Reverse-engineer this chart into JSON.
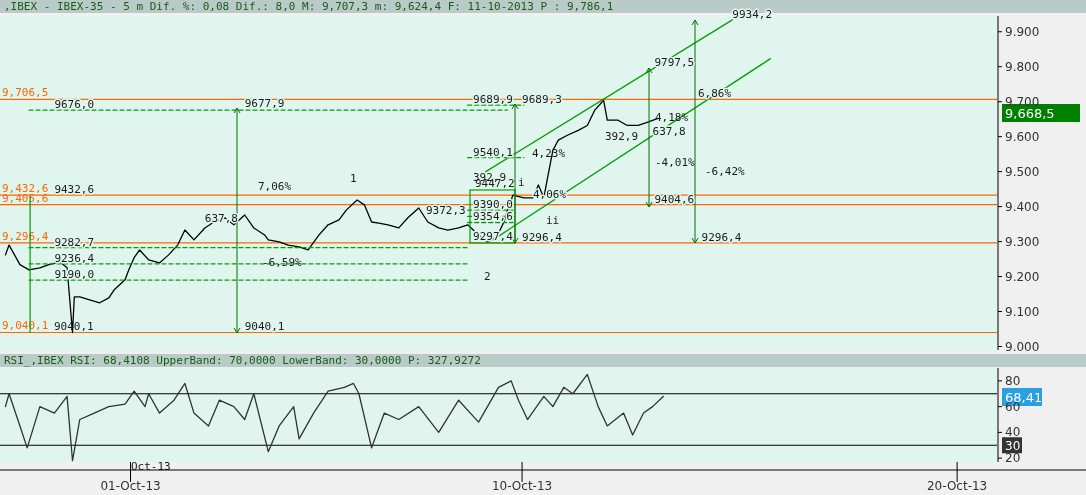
{
  "chart_data": [
    {
      "type": "line",
      "title": ",IBEX - IBEX-35 -  5 m Dif. %: 0,08 Dif.: 8,0 M: 9,707,3 m: 9,624,4 F: 11-10-2013 P : 9,786,1",
      "xlim": [
        "2013-09-28T00:00",
        "2013-10-20T22:00"
      ],
      "ylim": [
        8990,
        9945
      ],
      "yticks": [
        {
          "value": 9000,
          "label": "9.000"
        },
        {
          "value": 9100,
          "label": "9.100"
        },
        {
          "value": 9200,
          "label": "9.200"
        },
        {
          "value": 9300,
          "label": "9.300"
        },
        {
          "value": 9400,
          "label": "9.400"
        },
        {
          "value": 9500,
          "label": "9.500"
        },
        {
          "value": 9600,
          "label": "9.600"
        },
        {
          "value": 9700,
          "label": "9.700"
        },
        {
          "value": 9800,
          "label": "9.800"
        },
        {
          "value": 9900,
          "label": "9.900"
        }
      ],
      "tick_labels": "y",
      "series": [
        {
          "color": "#000000",
          "x": [
            "2013-09-28T03:00",
            "2013-09-28T05:00",
            "2013-09-28T11:00",
            "2013-09-28T16:00",
            "2013-09-28T22:00",
            "2013-09-29T03:00",
            "2013-09-29T09:00",
            "2013-09-29T13:00",
            "2013-09-29T16:00",
            "2013-09-29T17:00",
            "2013-09-29T20:00",
            "2013-09-30T01:00",
            "2013-09-30T07:00",
            "2013-09-30T12:00",
            "2013-09-30T15:00",
            "2013-09-30T21:00",
            "2013-09-30T23:00",
            "2013-10-01T02:00",
            "2013-10-01T05:00",
            "2013-10-01T10:00",
            "2013-10-01T16:00",
            "2013-10-01T21:00",
            "2013-10-02T02:00",
            "2013-10-02T06:00",
            "2013-10-02T11:00",
            "2013-10-02T17:00",
            "2013-10-02T22:00",
            "2013-10-03T04:00",
            "2013-10-03T09:00",
            "2013-10-03T15:00",
            "2013-10-03T20:00",
            "2013-10-04T02:00",
            "2013-10-04T04:00",
            "2013-10-04T10:00",
            "2013-10-04T15:00",
            "2013-10-04T21:00",
            "2013-10-05T02:00",
            "2013-10-05T08:00",
            "2013-10-05T13:00",
            "2013-10-05T19:00",
            "2013-10-05T23:00",
            "2013-10-06T05:00",
            "2013-10-06T09:00",
            "2013-10-06T13:00",
            "2013-10-06T17:00",
            "2013-10-06T22:00",
            "2013-10-07T04:00",
            "2013-10-07T09:00",
            "2013-10-07T15:00",
            "2013-10-07T20:00",
            "2013-10-08T02:00",
            "2013-10-08T07:00",
            "2013-10-08T13:00",
            "2013-10-08T18:00",
            "2013-10-09T00:00",
            "2013-10-09T05:00",
            "2013-10-09T10:00",
            "2013-10-09T14:00",
            "2013-10-09T16:00",
            "2013-10-09T19:00",
            "2013-10-10T01:00",
            "2013-10-10T06:00",
            "2013-10-10T09:00",
            "2013-10-10T12:00",
            "2013-10-10T14:00",
            "2013-10-10T17:00",
            "2013-10-10T20:00",
            "2013-10-11T01:00",
            "2013-10-11T07:00",
            "2013-10-11T12:00",
            "2013-10-11T16:00",
            "2013-10-11T21:00",
            "2013-10-11T23:00",
            "2013-10-12T05:00",
            "2013-10-12T10:00",
            "2013-10-12T16:00",
            "2013-10-12T21:00",
            "2013-10-13T03:00"
          ],
          "values": [
            9262,
            9290,
            9234,
            9219,
            9225,
            9234,
            9242,
            9225,
            9040,
            9142,
            9142,
            9134,
            9125,
            9139,
            9162,
            9191,
            9219,
            9254,
            9276,
            9248,
            9239,
            9262,
            9290,
            9333,
            9305,
            9339,
            9356,
            9368,
            9348,
            9376,
            9339,
            9319,
            9305,
            9299,
            9290,
            9285,
            9276,
            9319,
            9348,
            9362,
            9390,
            9419,
            9405,
            9356,
            9353,
            9348,
            9339,
            9368,
            9396,
            9356,
            9339,
            9333,
            9339,
            9348,
            9319,
            9299,
            9313,
            9356,
            9390,
            9433,
            9425,
            9425,
            9462,
            9425,
            9481,
            9561,
            9590,
            9604,
            9618,
            9632,
            9675,
            9704,
            9647,
            9647,
            9632,
            9632,
            9641,
            9652
          ]
        },
        {
          "color": "#00a000",
          "x": [
            "2013-10-09T04:00",
            "2013-10-14T20:00"
          ],
          "values": [
            9500,
            9934
          ]
        },
        {
          "color": "#00a000",
          "x": [
            "2013-10-09T08:00",
            "2013-10-15T17:00"
          ],
          "values": [
            9305,
            9823
          ]
        },
        {
          "color": "#00a000",
          "line_style": "dashed",
          "x": [
            "2013-09-28T16:00",
            "2013-10-09T16:00"
          ],
          "values": [
            9676.0,
            9676.0
          ]
        },
        {
          "color": "#00a000",
          "line_style": "dashed",
          "x": [
            "2013-09-28T16:00",
            "2013-10-08T18:00"
          ],
          "values": [
            9282.7,
            9282.7
          ]
        },
        {
          "color": "#00a000",
          "line_style": "dashed",
          "x": [
            "2013-09-28T16:00",
            "2013-10-08T18:00"
          ],
          "values": [
            9236.4,
            9236.4
          ]
        },
        {
          "color": "#00a000",
          "line_style": "dashed",
          "x": [
            "2013-09-28T16:00",
            "2013-10-08T18:00"
          ],
          "values": [
            9190.0,
            9190.0
          ]
        },
        {
          "color": "#00a000",
          "line_style": "dashed",
          "x": [
            "2013-10-08T18:00",
            "2013-10-10T01:00"
          ],
          "values": [
            9689.9,
            9689.9
          ]
        },
        {
          "color": "#00a000",
          "line_style": "dashed",
          "x": [
            "2013-10-08T18:00",
            "2013-10-10T01:00"
          ],
          "values": [
            9540.1,
            9540.1
          ]
        },
        {
          "color": "#00a000",
          "line_style": "dashed",
          "x": [
            "2013-10-08T18:00",
            "2013-10-09T19:00"
          ],
          "values": [
            9390.0,
            9390.0
          ]
        },
        {
          "color": "#00a000",
          "line_style": "dashed",
          "x": [
            "2013-10-08T18:00",
            "2013-10-09T19:00"
          ],
          "values": [
            9372.3,
            9372.3
          ]
        },
        {
          "color": "#00a000",
          "line_style": "dashed",
          "x": [
            "2013-10-08T18:00",
            "2013-10-09T19:00"
          ],
          "values": [
            9354.6,
            9354.6
          ]
        }
      ],
      "ref_lines": [
        {
          "axis": "y",
          "value": 9706.5,
          "label": "9,706,5",
          "color": "#ff6600"
        },
        {
          "axis": "y",
          "value": 9432.6,
          "label": "9,432,6",
          "color": "#ff6600"
        },
        {
          "axis": "y",
          "value": 9405.6,
          "label": "9,405,6",
          "color": "#ff6600"
        },
        {
          "axis": "y",
          "value": 9296.4,
          "label": "9,296,4",
          "color": "#ff6600"
        },
        {
          "axis": "y",
          "value": 9040.1,
          "label": "9,040,1",
          "color": "#ff6600"
        }
      ],
      "annotations": [
        {
          "text": "9676,0",
          "x": "2013-09-29T06:00",
          "y": 9676.0
        },
        {
          "text": "9677,9",
          "x": "2013-10-03T15:00",
          "y": 9677.9
        },
        {
          "text": "9040,1",
          "x": "2013-10-03T15:00",
          "y": 9040.1
        },
        "7,06%",
        "-6,59%",
        {
          "text": "9432,6",
          "x": "2013-09-29T06:00",
          "y": 9432.6
        },
        {
          "text": "9282,7",
          "x": "2013-09-29T06:00",
          "y": 9282.7
        },
        {
          "text": "9236,4",
          "x": "2013-09-29T06:00",
          "y": 9236.4
        },
        {
          "text": "9190,0",
          "x": "2013-09-29T06:00",
          "y": 9190.0
        },
        "9040,1",
        {
          "text": "637,8",
          "x": "2013-10-02T17:00",
          "y": 9350
        },
        "1",
        "2",
        {
          "text": "9689,9",
          "x": "2013-10-08T21:00",
          "y": 9689.9
        },
        {
          "text": "9689,3",
          "x": "2013-10-10T00:00",
          "y": 9689.3
        },
        {
          "text": "9540,1",
          "x": "2013-10-08T21:00",
          "y": 9540.1
        },
        "4,23%",
        "392,9",
        "9447,2",
        "i",
        {
          "text": "9390,0",
          "x": "2013-10-08T21:00",
          "y": 9390.0
        },
        {
          "text": "9372,3",
          "x": "2013-10-07T19:00",
          "y": 9372.3
        },
        {
          "text": "9354,6",
          "x": "2013-10-08T21:00",
          "y": 9354.6
        },
        {
          "text": "9297,4",
          "x": "2013-10-08T21:00",
          "y": 9297.4
        },
        {
          "text": "4,06%",
          "x": "2013-10-10T06:00",
          "y": 9418
        },
        "ii",
        {
          "text": "9296,4",
          "x": "2013-10-10T00:00",
          "y": 9296.4
        },
        {
          "text": "9797,5",
          "x": "2013-10-13T01:00",
          "y": 9797.5
        },
        {
          "text": "9934,2",
          "x": "2013-10-14T20:00",
          "y": 9934
        },
        {
          "text": "6,86%",
          "x": "2013-10-14T01:00",
          "y": 9708
        },
        "4,18%",
        "392,9",
        {
          "text": "637,8",
          "x": "2013-10-13T00:00",
          "y": 9600
        },
        "-4,01%",
        "-6,42%",
        {
          "text": "9404,6",
          "x": "2013-10-13T01:00",
          "y": 9404.6
        },
        {
          "text": "9296,4",
          "x": "2013-10-14T03:00",
          "y": 9296.4
        },
        "9,668,5"
      ]
    },
    {
      "type": "line",
      "title": "RSI_,IBEX RSI: 68,4108 UpperBand: 70,0000 LowerBand: 30,0000 P: 327,9272",
      "xlim": [
        "2013-09-28T00:00",
        "2013-10-20T22:00"
      ],
      "ylim": [
        17,
        90
      ],
      "xticks": [
        {
          "value": "2013-10-01",
          "label": "01-Oct-13"
        },
        {
          "value": "2013-10-10",
          "label": "10-Oct-13"
        },
        {
          "value": "2013-10-20",
          "label": "20-Oct-13"
        }
      ],
      "yticks": [
        20,
        40,
        60,
        80
      ],
      "series": [
        {
          "color": "#333333",
          "x": [
            "2013-09-28T03:00",
            "2013-09-28T05:00",
            "2013-09-28T11:00",
            "2013-09-28T15:00",
            "2013-09-28T22:00",
            "2013-09-29T06:00",
            "2013-09-29T13:00",
            "2013-09-29T16:00",
            "2013-09-29T20:00",
            "2013-09-30T04:00",
            "2013-09-30T12:00",
            "2013-09-30T21:00",
            "2013-10-01T02:00",
            "2013-10-01T08:00",
            "2013-10-01T10:00",
            "2013-10-01T16:00",
            "2013-10-02T00:00",
            "2013-10-02T06:00",
            "2013-10-02T11:00",
            "2013-10-02T19:00",
            "2013-10-03T01:00",
            "2013-10-03T09:00",
            "2013-10-03T15:00",
            "2013-10-03T20:00",
            "2013-10-04T04:00",
            "2013-10-04T10:00",
            "2013-10-04T18:00",
            "2013-10-04T21:00",
            "2013-10-05T05:00",
            "2013-10-05T13:00",
            "2013-10-05T22:00",
            "2013-10-06T03:00",
            "2013-10-06T06:00",
            "2013-10-06T13:00",
            "2013-10-06T20:00",
            "2013-10-07T04:00",
            "2013-10-07T15:00",
            "2013-10-08T02:00",
            "2013-10-08T13:00",
            "2013-10-09T00:00",
            "2013-10-09T11:00",
            "2013-10-09T18:00",
            "2013-10-09T22:00",
            "2013-10-10T03:00",
            "2013-10-10T12:00",
            "2013-10-10T17:00",
            "2013-10-10T23:00",
            "2013-10-11T04:00",
            "2013-10-11T12:00",
            "2013-10-11T18:00",
            "2013-10-11T23:00",
            "2013-10-12T08:00",
            "2013-10-12T13:00",
            "2013-10-12T19:00",
            "2013-10-13T00:00",
            "2013-10-13T06:00"
          ],
          "values": [
            60,
            70,
            45,
            28,
            60,
            55,
            68,
            18,
            50,
            55,
            60,
            62,
            72,
            60,
            70,
            55,
            65,
            78,
            55,
            45,
            65,
            60,
            50,
            70,
            25,
            45,
            60,
            35,
            55,
            72,
            75,
            78,
            70,
            28,
            55,
            50,
            60,
            40,
            65,
            48,
            75,
            80,
            65,
            50,
            68,
            60,
            75,
            70,
            85,
            60,
            45,
            55,
            38,
            55,
            60,
            68
          ]
        }
      ],
      "ref_lines": [
        {
          "axis": "y",
          "value": 70,
          "color": "#000000"
        },
        {
          "axis": "y",
          "value": 30,
          "label": "30",
          "color": "#000000"
        }
      ],
      "annotations": [
        "68,41",
        "Oct-13"
      ]
    }
  ]
}
